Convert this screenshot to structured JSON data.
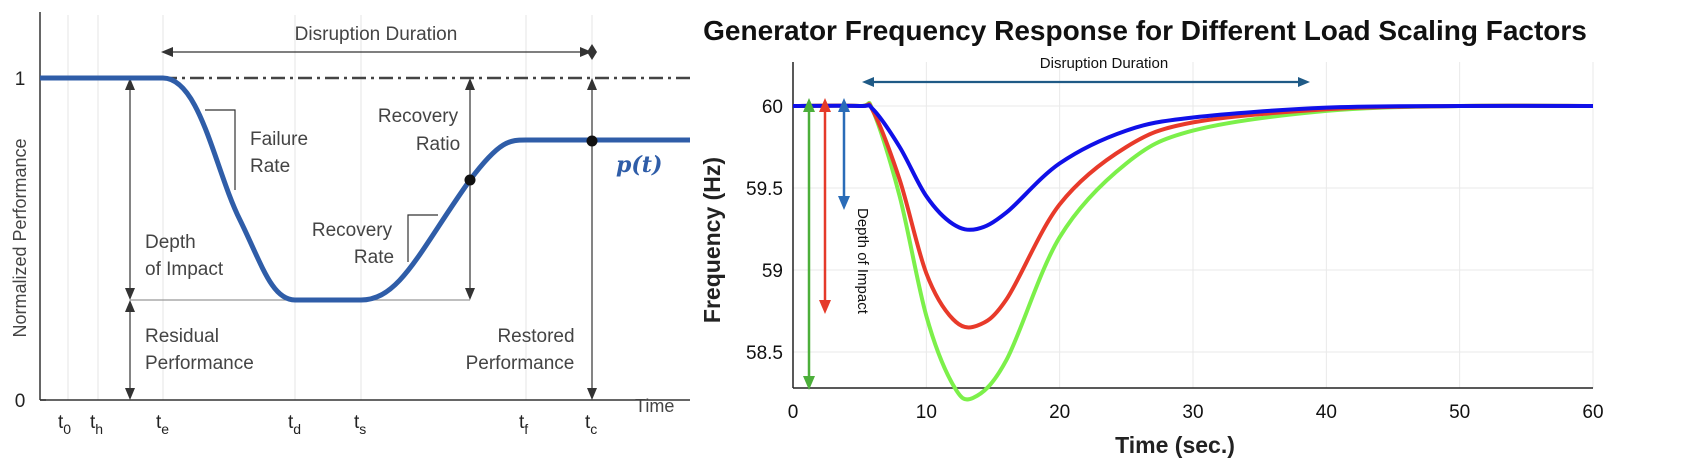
{
  "colors": {
    "curve_left": "#2f5da8",
    "freq_blue": "#1010e8",
    "freq_red": "#e83a2a",
    "freq_green": "#7cf04a",
    "arrow_green": "#4caf3a",
    "arrow_red": "#e53a2a",
    "arrow_blue": "#2a6cb8",
    "duration_arrow": "#1f5a86"
  },
  "chart_data": [
    {
      "type": "line",
      "title": "",
      "xlabel": "Time",
      "ylabel": "Normalized Performance",
      "y_ticks": [
        "1",
        "0"
      ],
      "x_ticks": [
        {
          "base": "t",
          "sub": "0"
        },
        {
          "base": "t",
          "sub": "h"
        },
        {
          "base": "t",
          "sub": "e"
        },
        {
          "base": "t",
          "sub": "d"
        },
        {
          "base": "t",
          "sub": "s"
        },
        {
          "base": "t",
          "sub": "f"
        },
        {
          "base": "t",
          "sub": "c"
        }
      ],
      "series": [
        {
          "name": "p(t)",
          "points": [
            {
              "x": "t0",
              "y": 1.0
            },
            {
              "x": "te",
              "y": 1.0
            },
            {
              "x": "td",
              "y": 0.3
            },
            {
              "x": "ts",
              "y": 0.3
            },
            {
              "x": "tf",
              "y": 0.8
            },
            {
              "x": "tc",
              "y": 0.8
            }
          ]
        }
      ],
      "annotations": {
        "disruption_duration": "Disruption Duration",
        "failure_rate_1": "Failure",
        "failure_rate_2": "Rate",
        "depth_1": "Depth",
        "depth_2": "of Impact",
        "residual_1": "Residual",
        "residual_2": "Performance",
        "recovery_rate_1": "Recovery",
        "recovery_rate_2": "Rate",
        "recovery_ratio_1": "Recovery",
        "recovery_ratio_2": "Ratio",
        "restored_1": "Restored",
        "restored_2": "Performance",
        "curve_label": "p(t)"
      }
    },
    {
      "type": "line",
      "title": "Generator Frequency Response for Different Load Scaling Factors",
      "xlabel": "Time (sec.)",
      "ylabel": "Frequency (Hz)",
      "xlim": [
        0,
        60
      ],
      "ylim": [
        58.2,
        60.25
      ],
      "x_ticks": [
        "0",
        "10",
        "20",
        "30",
        "40",
        "50",
        "60"
      ],
      "y_ticks": [
        "60",
        "59.5",
        "59",
        "58.5"
      ],
      "grid": true,
      "series": [
        {
          "color": "blue",
          "values_desc": "min",
          "x": [
            0,
            5,
            6,
            8,
            10,
            12,
            13.8,
            16,
            20,
            25,
            30,
            40,
            50,
            60
          ],
          "y": [
            60,
            60,
            59.98,
            59.75,
            59.45,
            59.28,
            59.25,
            59.35,
            59.65,
            59.85,
            59.93,
            59.99,
            60,
            60
          ]
        },
        {
          "color": "red",
          "x": [
            0,
            5,
            6,
            8,
            10,
            12,
            13.8,
            16,
            20,
            25,
            30,
            40,
            50,
            60
          ],
          "y": [
            60,
            60,
            59.97,
            59.55,
            58.98,
            58.7,
            58.66,
            58.82,
            59.4,
            59.75,
            59.9,
            59.98,
            60,
            60
          ]
        },
        {
          "color": "green",
          "x": [
            0,
            5,
            6,
            8,
            10,
            12,
            13.5,
            16,
            20,
            25,
            30,
            40,
            50,
            60
          ],
          "y": [
            60,
            60,
            59.97,
            59.45,
            58.72,
            58.3,
            58.22,
            58.45,
            59.2,
            59.65,
            59.85,
            59.97,
            60,
            60
          ]
        }
      ],
      "annotations": {
        "disruption_duration": "Disruption Duration",
        "depth_of_impact": "Depth of Impact"
      }
    }
  ]
}
